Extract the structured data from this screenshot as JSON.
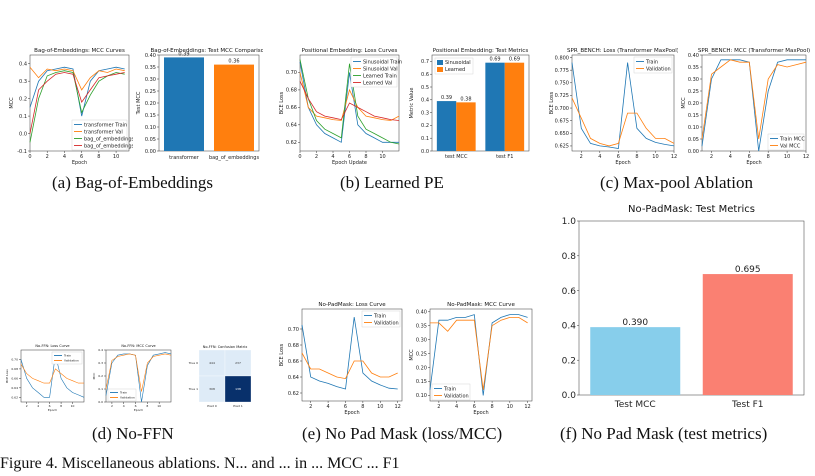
{
  "captions": {
    "a": "(a) Bag-of-Embeddings",
    "b": "(b) Learned PE",
    "c": "(c) Max-pool Ablation",
    "d": "(d) No-FFN",
    "e": "(e) No Pad Mask (loss/MCC)",
    "f": "(f) No Pad Mask (test metrics)"
  },
  "footer_text": "Figure 4. Miscellaneous ablations. N... and ... in ... MCC ... F1",
  "chart_data": [
    {
      "id": "a1",
      "type": "line",
      "title": "Bag-of-Embeddings: MCC Curves",
      "xlabel": "Epoch",
      "ylabel": "MCC",
      "xlim": [
        0,
        11.5
      ],
      "ylim": [
        -0.1,
        0.45
      ],
      "xticks": [
        0,
        2,
        4,
        6,
        8,
        10
      ],
      "yticks": [
        -0.1,
        0.0,
        0.1,
        0.2,
        0.3,
        0.4
      ],
      "x": [
        0,
        1,
        2,
        3,
        4,
        5,
        6,
        7,
        8,
        9,
        10,
        11
      ],
      "series": [
        {
          "name": "transformer Train",
          "color": "#1f77b4",
          "values": [
            0.15,
            0.3,
            0.36,
            0.37,
            0.38,
            0.37,
            0.1,
            0.3,
            0.36,
            0.37,
            0.38,
            0.37
          ]
        },
        {
          "name": "transformer Val",
          "color": "#ff7f0e",
          "values": [
            0.38,
            0.32,
            0.37,
            0.36,
            0.37,
            0.36,
            0.25,
            0.32,
            0.36,
            0.35,
            0.37,
            0.36
          ]
        },
        {
          "name": "bag_of_embeddings Train",
          "color": "#2ca02c",
          "values": [
            -0.05,
            0.2,
            0.33,
            0.35,
            0.36,
            0.35,
            0.12,
            0.22,
            0.3,
            0.33,
            0.35,
            0.34
          ]
        },
        {
          "name": "bag_of_embeddings Val",
          "color": "#d62728",
          "values": [
            0.0,
            0.25,
            0.3,
            0.34,
            0.35,
            0.34,
            0.18,
            0.25,
            0.32,
            0.33,
            0.34,
            0.35
          ]
        }
      ]
    },
    {
      "id": "a2",
      "type": "bar",
      "title": "Bag-of-Embeddings: Test MCC Comparison",
      "ylabel": "Test MCC",
      "ylim": [
        0,
        0.4
      ],
      "yticks": [
        0.0,
        0.05,
        0.1,
        0.15,
        0.2,
        0.25,
        0.3,
        0.35,
        0.4
      ],
      "categories": [
        "transformer",
        "bag_of_embeddings"
      ],
      "values": [
        0.39,
        0.36
      ],
      "labels": [
        "0.39",
        "0.36"
      ],
      "colors": [
        "#1f77b4",
        "#ff7f0e"
      ]
    },
    {
      "id": "b1",
      "type": "line",
      "title": "Positional Embedding: Loss Curves",
      "xlabel": "Epoch Update",
      "ylabel": "BCE Loss",
      "xlim": [
        0,
        12
      ],
      "ylim": [
        0.61,
        0.72
      ],
      "xticks": [
        0,
        2,
        4,
        6,
        8,
        10
      ],
      "yticks": [
        0.62,
        0.64,
        0.66,
        0.68,
        0.7
      ],
      "x": [
        0,
        1,
        2,
        3,
        4,
        5,
        6,
        7,
        8,
        9,
        10,
        11,
        12
      ],
      "series": [
        {
          "name": "Sinusoidal Train",
          "color": "#1f77b4",
          "values": [
            0.712,
            0.66,
            0.64,
            0.63,
            0.625,
            0.62,
            0.7,
            0.64,
            0.63,
            0.625,
            0.62,
            0.62,
            0.62
          ]
        },
        {
          "name": "Sinusoidal Val",
          "color": "#ff7f0e",
          "values": [
            0.7,
            0.66,
            0.65,
            0.648,
            0.646,
            0.645,
            0.68,
            0.66,
            0.65,
            0.648,
            0.646,
            0.645,
            0.65
          ]
        },
        {
          "name": "Learned Train",
          "color": "#2ca02c",
          "values": [
            0.715,
            0.67,
            0.645,
            0.635,
            0.63,
            0.625,
            0.71,
            0.65,
            0.635,
            0.63,
            0.625,
            0.62,
            0.618
          ]
        },
        {
          "name": "Learned Val",
          "color": "#d62728",
          "values": [
            0.69,
            0.67,
            0.655,
            0.65,
            0.648,
            0.646,
            0.665,
            0.66,
            0.655,
            0.65,
            0.648,
            0.646,
            0.645
          ]
        }
      ]
    },
    {
      "id": "b2",
      "type": "bar",
      "title": "Positional Embedding: Test Metrics",
      "ylabel": "Metric Value",
      "ylim": [
        0,
        0.75
      ],
      "yticks": [
        0.0,
        0.1,
        0.2,
        0.3,
        0.4,
        0.5,
        0.6,
        0.7
      ],
      "categories": [
        "test MCC",
        "test F1"
      ],
      "series": [
        {
          "name": "Sinusoidal",
          "color": "#1f77b4",
          "values": [
            0.39,
            0.69
          ],
          "labels": [
            "0.39",
            "0.69"
          ]
        },
        {
          "name": "Learned",
          "color": "#ff7f0e",
          "values": [
            0.38,
            0.69
          ],
          "labels": [
            "0.38",
            "0.69"
          ]
        }
      ]
    },
    {
      "id": "c1",
      "type": "line",
      "title": "SPR_BENCH: Loss (Transformer MaxPool)",
      "xlabel": "Epoch",
      "ylabel": "BCE Loss",
      "xlim": [
        1,
        12
      ],
      "ylim": [
        0.615,
        0.805
      ],
      "xticks": [
        2,
        4,
        6,
        8,
        10,
        12
      ],
      "yticks": [
        0.625,
        0.65,
        0.675,
        0.7,
        0.725,
        0.75,
        0.775,
        0.8
      ],
      "x": [
        1,
        2,
        3,
        4,
        5,
        6,
        7,
        8,
        9,
        10,
        11,
        12
      ],
      "series": [
        {
          "name": "Train",
          "color": "#1f77b4",
          "values": [
            0.79,
            0.66,
            0.63,
            0.625,
            0.623,
            0.62,
            0.79,
            0.66,
            0.64,
            0.632,
            0.628,
            0.625
          ]
        },
        {
          "name": "Validation",
          "color": "#ff7f0e",
          "values": [
            0.72,
            0.68,
            0.64,
            0.63,
            0.625,
            0.63,
            0.69,
            0.69,
            0.66,
            0.64,
            0.64,
            0.63
          ]
        }
      ]
    },
    {
      "id": "c2",
      "type": "line",
      "title": "SPR_BENCH: MCC (Transformer MaxPool)",
      "xlabel": "Epoch",
      "ylabel": "MCC",
      "xlim": [
        1,
        12
      ],
      "ylim": [
        0,
        0.4
      ],
      "xticks": [
        2,
        4,
        6,
        8,
        10,
        12
      ],
      "yticks": [
        0.0,
        0.05,
        0.1,
        0.15,
        0.2,
        0.25,
        0.3,
        0.35,
        0.4
      ],
      "x": [
        1,
        2,
        3,
        4,
        5,
        6,
        7,
        8,
        9,
        10,
        11,
        12
      ],
      "series": [
        {
          "name": "Train MCC",
          "color": "#1f77b4",
          "values": [
            0.02,
            0.3,
            0.38,
            0.38,
            0.38,
            0.37,
            0.0,
            0.25,
            0.37,
            0.38,
            0.38,
            0.38
          ]
        },
        {
          "name": "Val MCC",
          "color": "#ff7f0e",
          "values": [
            0.05,
            0.32,
            0.35,
            0.38,
            0.37,
            0.37,
            0.05,
            0.3,
            0.36,
            0.35,
            0.36,
            0.37
          ]
        }
      ]
    },
    {
      "id": "d1",
      "type": "line",
      "title": "No-FFN: Loss Curve",
      "xlabel": "Epoch",
      "ylabel": "BCE Loss",
      "xlim": [
        1,
        12
      ],
      "ylim": [
        0.61,
        0.72
      ],
      "xticks": [
        2,
        4,
        6,
        8,
        10
      ],
      "yticks": [
        0.62,
        0.64,
        0.66,
        0.68,
        0.7
      ],
      "x": [
        1,
        2,
        3,
        4,
        5,
        6,
        7,
        8,
        9,
        10,
        11,
        12
      ],
      "series": [
        {
          "name": "Train",
          "color": "#1f77b4",
          "values": [
            0.7,
            0.66,
            0.64,
            0.63,
            0.62,
            0.62,
            0.71,
            0.66,
            0.64,
            0.63,
            0.625,
            0.62
          ]
        },
        {
          "name": "Validation",
          "color": "#ff7f0e",
          "values": [
            0.69,
            0.67,
            0.66,
            0.655,
            0.65,
            0.65,
            0.68,
            0.67,
            0.66,
            0.655,
            0.65,
            0.65
          ]
        }
      ]
    },
    {
      "id": "d2",
      "type": "line",
      "title": "No-FFN: MCC Curve",
      "xlabel": "Epoch",
      "ylabel": "MCC",
      "xlim": [
        1,
        12
      ],
      "ylim": [
        0,
        0.4
      ],
      "xticks": [
        2,
        4,
        6,
        8,
        10
      ],
      "yticks": [
        0.0,
        0.1,
        0.2,
        0.3,
        0.4
      ],
      "x": [
        1,
        2,
        3,
        4,
        5,
        6,
        7,
        8,
        9,
        10,
        11,
        12
      ],
      "series": [
        {
          "name": "Train",
          "color": "#1f77b4",
          "values": [
            0.05,
            0.3,
            0.36,
            0.37,
            0.37,
            0.36,
            0.0,
            0.28,
            0.36,
            0.37,
            0.38,
            0.37
          ]
        },
        {
          "name": "Validation",
          "color": "#ff7f0e",
          "values": [
            0.1,
            0.32,
            0.35,
            0.36,
            0.37,
            0.36,
            0.08,
            0.3,
            0.35,
            0.36,
            0.37,
            0.36
          ]
        }
      ]
    },
    {
      "id": "d3",
      "type": "heatmap",
      "title": "No-FFN: Confusion Matrix",
      "row_labels": [
        "True 0",
        "True 1"
      ],
      "col_labels": [
        "Pred 0",
        "Pred 1"
      ],
      "cells": [
        [
          "444",
          "237"
        ],
        [
          "308",
          "138"
        ]
      ],
      "cell_values": [
        [
          0.2,
          0.2
        ],
        [
          0.2,
          0.9
        ]
      ]
    },
    {
      "id": "e1",
      "type": "line",
      "title": "No-PadMask: Loss Curve",
      "xlabel": "Epoch",
      "ylabel": "BCE Loss",
      "xlim": [
        1,
        12.5
      ],
      "ylim": [
        0.61,
        0.725
      ],
      "xticks": [
        2,
        4,
        6,
        8,
        10,
        12
      ],
      "yticks": [
        0.62,
        0.64,
        0.66,
        0.68,
        0.7
      ],
      "x": [
        1,
        2,
        3,
        4,
        5,
        6,
        7,
        8,
        9,
        10,
        11,
        12
      ],
      "series": [
        {
          "name": "Train",
          "color": "#1f77b4",
          "values": [
            0.705,
            0.64,
            0.635,
            0.632,
            0.628,
            0.625,
            0.715,
            0.645,
            0.635,
            0.63,
            0.626,
            0.625
          ]
        },
        {
          "name": "Validation",
          "color": "#ff7f0e",
          "values": [
            0.67,
            0.65,
            0.65,
            0.645,
            0.64,
            0.638,
            0.66,
            0.66,
            0.645,
            0.64,
            0.64,
            0.645
          ]
        }
      ]
    },
    {
      "id": "e2",
      "type": "line",
      "title": "No-PadMask: MCC Curve",
      "xlabel": "Epoch",
      "ylabel": "MCC",
      "xlim": [
        1,
        12.5
      ],
      "ylim": [
        0.08,
        0.41
      ],
      "xticks": [
        2,
        4,
        6,
        8,
        10,
        12
      ],
      "yticks": [
        0.1,
        0.15,
        0.2,
        0.25,
        0.3,
        0.35,
        0.4
      ],
      "x": [
        1,
        2,
        3,
        4,
        5,
        6,
        7,
        8,
        9,
        10,
        11,
        12
      ],
      "series": [
        {
          "name": "Train",
          "color": "#1f77b4",
          "values": [
            0.12,
            0.37,
            0.37,
            0.38,
            0.38,
            0.39,
            0.1,
            0.36,
            0.38,
            0.39,
            0.39,
            0.38
          ]
        },
        {
          "name": "Validation",
          "color": "#ff7f0e",
          "values": [
            0.36,
            0.36,
            0.33,
            0.37,
            0.37,
            0.37,
            0.12,
            0.35,
            0.37,
            0.38,
            0.38,
            0.36
          ]
        }
      ]
    },
    {
      "id": "f1",
      "type": "bar",
      "title": "No-PadMask: Test Metrics",
      "ylim": [
        0,
        1.0
      ],
      "yticks": [
        0.0,
        0.2,
        0.4,
        0.6,
        0.8,
        1.0
      ],
      "categories": [
        "Test MCC",
        "Test F1"
      ],
      "values": [
        0.39,
        0.695
      ],
      "labels": [
        "0.390",
        "0.695"
      ],
      "colors": [
        "#87ceeb",
        "#fa8072"
      ]
    }
  ]
}
